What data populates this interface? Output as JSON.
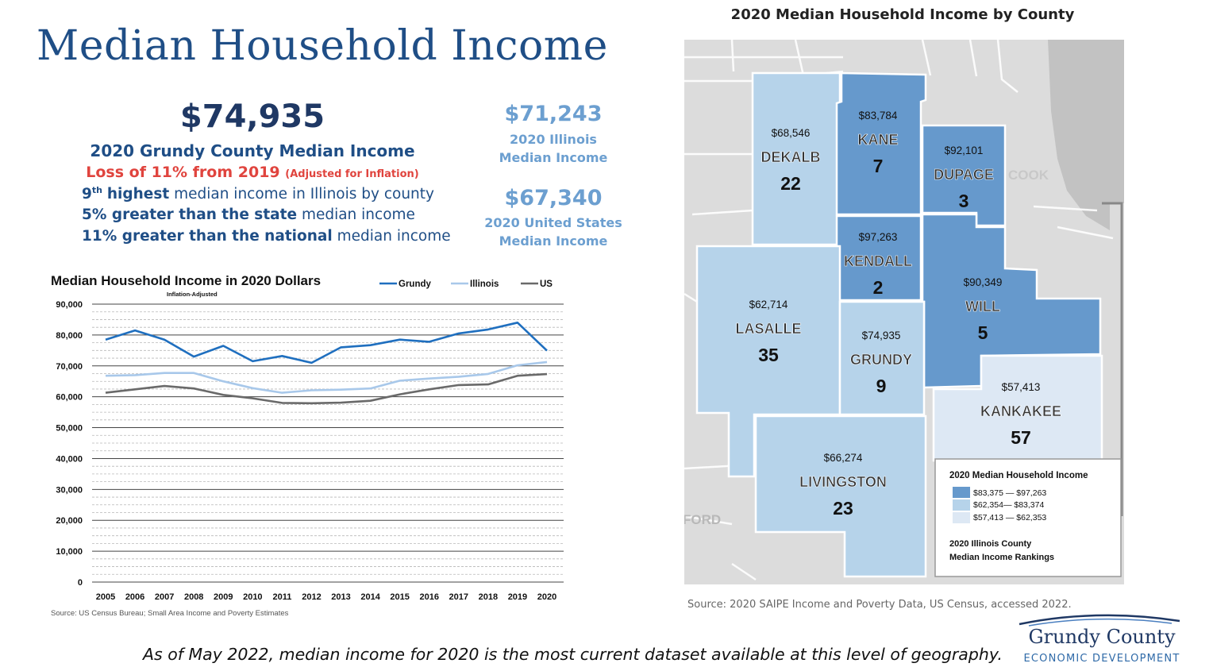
{
  "header": {
    "title": "Median Household Income"
  },
  "grundy": {
    "value": "$74,935",
    "label": "2020 Grundy County Median Income",
    "loss_main": "Loss of 11% from 2019",
    "loss_note": "(Adjusted for Inflation)",
    "fact1_rank": "9",
    "fact1_sup": "th",
    "fact1_bold": "highest",
    "fact1_rest": "median income in Illinois by county",
    "fact2_bold": "5% greater than the state",
    "fact2_rest": "median income",
    "fact3_bold": "11% greater than the national",
    "fact3_rest": "median income"
  },
  "comparisons": [
    {
      "value": "$71,243",
      "label_line1": "2020 Illinois",
      "label_line2": "Median Income"
    },
    {
      "value": "$67,340",
      "label_line1": "2020 United States",
      "label_line2": "Median Income"
    }
  ],
  "colors": {
    "grundy": "#1f6fbf",
    "illinois": "#a8c8ea",
    "us": "#6a6a6a",
    "tier_high": "#6699cc",
    "tier_mid": "#b6d3ea",
    "tier_low": "#dde8f4",
    "title": "#1f4e86",
    "loss": "#e0443e"
  },
  "chart_data": [
    {
      "type": "line",
      "title": "Median Household Income in 2020 Dollars",
      "subtitle": "Inflation-Adjusted",
      "x": [
        "2005",
        "2006",
        "2007",
        "2008",
        "2009",
        "2010",
        "2011",
        "2012",
        "2013",
        "2014",
        "2015",
        "2016",
        "2017",
        "2018",
        "2019",
        "2020"
      ],
      "series": [
        {
          "name": "Grundy",
          "values": [
            78500,
            81500,
            78500,
            73000,
            76500,
            71500,
            73200,
            71000,
            76000,
            76700,
            78500,
            77800,
            80500,
            81800,
            84000,
            74935
          ]
        },
        {
          "name": "Illinois",
          "values": [
            66800,
            67000,
            67700,
            67700,
            65000,
            62800,
            61300,
            62100,
            62300,
            62700,
            65200,
            65900,
            66500,
            67400,
            70200,
            71243
          ]
        },
        {
          "name": "US",
          "values": [
            61300,
            62400,
            63500,
            62700,
            60600,
            59500,
            58000,
            57900,
            58100,
            58700,
            60800,
            62400,
            63800,
            64000,
            66800,
            67340
          ]
        }
      ],
      "ylim": [
        0,
        90000
      ],
      "yticks": [
        "0",
        "10,000",
        "20,000",
        "30,000",
        "40,000",
        "50,000",
        "60,000",
        "70,000",
        "80,000",
        "90,000"
      ],
      "legend_position": "top-right",
      "grid": true,
      "source": "Source: US Census Bureau; Small Area Income and Poverty Estimates"
    },
    {
      "type": "map",
      "title": "2020 Median Household Income by County",
      "counties": [
        {
          "name": "DEKALB",
          "income": "$68,546",
          "rank": "22",
          "tier": "mid"
        },
        {
          "name": "KANE",
          "income": "$83,784",
          "rank": "7",
          "tier": "high"
        },
        {
          "name": "DUPAGE",
          "income": "$92,101",
          "rank": "3",
          "tier": "high"
        },
        {
          "name": "KENDALL",
          "income": "$97,263",
          "rank": "2",
          "tier": "high"
        },
        {
          "name": "WILL",
          "income": "$90,349",
          "rank": "5",
          "tier": "high"
        },
        {
          "name": "LASALLE",
          "income": "$62,714",
          "rank": "35",
          "tier": "mid"
        },
        {
          "name": "GRUNDY",
          "income": "$74,935",
          "rank": "9",
          "tier": "mid"
        },
        {
          "name": "KANKAKEE",
          "income": "$57,413",
          "rank": "57",
          "tier": "low"
        },
        {
          "name": "LIVINGSTON",
          "income": "$66,274",
          "rank": "23",
          "tier": "mid"
        }
      ],
      "other_labels": {
        "cook": "COOK",
        "ford": "FORD"
      },
      "legend": {
        "title": "2020 Median Household Income",
        "ranges": [
          {
            "label": "$83,375 — $97,263",
            "tier": "high"
          },
          {
            "label": "$62,354— $83,374",
            "tier": "mid"
          },
          {
            "label": "$57,413 — $62,353",
            "tier": "low"
          }
        ],
        "note_line1": "2020 Illinois County",
        "note_line2": "Median Income Rankings"
      },
      "source": "Source: 2020 SAIPE Income and Poverty Data, US Census, accessed 2022."
    }
  ],
  "footer": {
    "note": "As of May 2022, median income for 2020 is the most current dataset available at this level of geography.",
    "logo_name": "Grundy County",
    "logo_sub": "ECONOMIC DEVELOPMENT"
  }
}
